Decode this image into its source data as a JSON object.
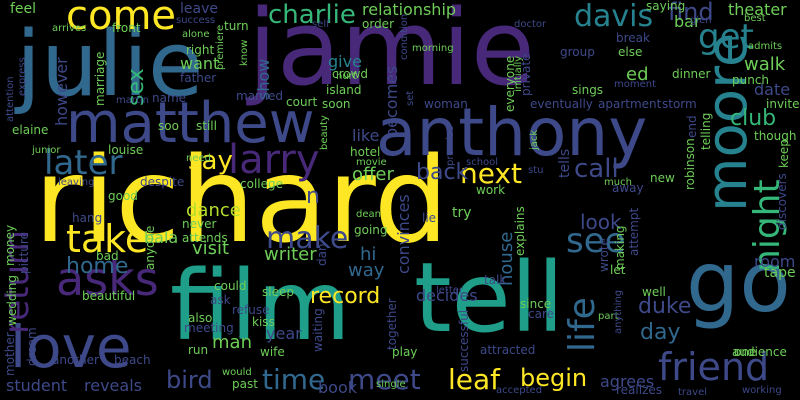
{
  "palette": {
    "yellow": "#fde725",
    "lime": "#b5de2b",
    "green": "#6ece58",
    "green2": "#35b779",
    "teal": "#1f9e89",
    "teal2": "#26828e",
    "blue": "#31688e",
    "indigo": "#3e4989",
    "purple": "#482878",
    "dark": "#440154"
  },
  "words": [
    {
      "text": "richard",
      "color": "#fde725"
    },
    {
      "text": "jamie",
      "color": "#482878"
    },
    {
      "text": "julie",
      "color": "#31688e"
    },
    {
      "text": "film",
      "color": "#1f9e89"
    },
    {
      "text": "tell",
      "color": "#1f9e89"
    },
    {
      "text": "anthony",
      "color": "#3e4989"
    },
    {
      "text": "go",
      "color": "#31688e"
    },
    {
      "text": "love",
      "color": "#3e4989"
    },
    {
      "text": "matthew",
      "color": "#3e4989"
    },
    {
      "text": "moore",
      "color": "#26828e"
    },
    {
      "text": "larry",
      "color": "#482878"
    },
    {
      "text": "asks",
      "color": "#482878"
    },
    {
      "text": "come",
      "color": "#fde725"
    },
    {
      "text": "friend",
      "color": "#3e4989"
    },
    {
      "text": "take",
      "color": "#fde725"
    },
    {
      "text": "night",
      "color": "#35b779"
    },
    {
      "text": "later",
      "color": "#31688e"
    },
    {
      "text": "return",
      "color": "#482878"
    },
    {
      "text": "charlie",
      "color": "#35b779"
    },
    {
      "text": "davis",
      "color": "#26828e"
    },
    {
      "text": "life",
      "color": "#31688e"
    },
    {
      "text": "get",
      "color": "#26828e"
    },
    {
      "text": "see",
      "color": "#31688e"
    },
    {
      "text": "record",
      "color": "#fde725"
    },
    {
      "text": "time",
      "color": "#31688e"
    },
    {
      "text": "make",
      "color": "#3e4989"
    },
    {
      "text": "call",
      "color": "#3e4989"
    },
    {
      "text": "next",
      "color": "#fde725"
    },
    {
      "text": "back",
      "color": "#3e4989"
    },
    {
      "text": "say",
      "color": "#fde725"
    },
    {
      "text": "meet",
      "color": "#3e4989"
    },
    {
      "text": "leaf",
      "color": "#fde725"
    },
    {
      "text": "begin",
      "color": "#fde725"
    },
    {
      "text": "home",
      "color": "#31688e"
    },
    {
      "text": "bird",
      "color": "#3e4989"
    },
    {
      "text": "find",
      "color": "#3e4989"
    },
    {
      "text": "sex",
      "color": "#35b779"
    },
    {
      "text": "duke",
      "color": "#3e4989"
    },
    {
      "text": "club",
      "color": "#35b779"
    },
    {
      "text": "day",
      "color": "#31688e"
    },
    {
      "text": "walk",
      "color": "#6ece58"
    },
    {
      "text": "house",
      "color": "#31688e"
    },
    {
      "text": "offer",
      "color": "#6ece58"
    },
    {
      "text": "dance",
      "color": "#b5de2b"
    },
    {
      "text": "man",
      "color": "#6ece58"
    },
    {
      "text": "visit",
      "color": "#6ece58"
    },
    {
      "text": "writer",
      "color": "#6ece58"
    },
    {
      "text": "look",
      "color": "#3e4989"
    },
    {
      "text": "way",
      "color": "#31688e"
    },
    {
      "text": "however",
      "color": "#3e4989"
    },
    {
      "text": "relationship",
      "color": "#6ece58"
    },
    {
      "text": "decides",
      "color": "#3e4989"
    },
    {
      "text": "convinces",
      "color": "#3e4989"
    },
    {
      "text": "reveals",
      "color": "#3e4989"
    },
    {
      "text": "student",
      "color": "#3e4989"
    },
    {
      "text": "agrees",
      "color": "#3e4989"
    },
    {
      "text": "bar",
      "color": "#6ece58"
    },
    {
      "text": "theater",
      "color": "#6ece58"
    },
    {
      "text": "date",
      "color": "#3e4989"
    },
    {
      "text": "room",
      "color": "#3e4989"
    },
    {
      "text": "want",
      "color": "#6ece58"
    },
    {
      "text": "show",
      "color": "#31688e"
    },
    {
      "text": "give",
      "color": "#26828e"
    },
    {
      "text": "becomes",
      "color": "#3e4989"
    },
    {
      "text": "ed",
      "color": "#6ece58"
    },
    {
      "text": "year",
      "color": "#3e4989"
    },
    {
      "text": "hi",
      "color": "#31688e"
    },
    {
      "text": "n",
      "color": "#3e4989"
    },
    {
      "text": "like",
      "color": "#3e4989"
    },
    {
      "text": "bala",
      "color": "#6ece58"
    },
    {
      "text": "tape",
      "color": "#6ece58"
    },
    {
      "text": "refuse",
      "color": "#3e4989"
    },
    {
      "text": "tells",
      "color": "#3e4989"
    },
    {
      "text": "feel",
      "color": "#6ece58"
    },
    {
      "text": "leave",
      "color": "#3e4989"
    },
    {
      "text": "saying",
      "color": "#6ece58"
    },
    {
      "text": "book",
      "color": "#3e4989"
    },
    {
      "text": "attracted",
      "color": "#3e4989"
    },
    {
      "text": "realizes",
      "color": "#3e4989"
    },
    {
      "text": "kiss",
      "color": "#6ece58"
    },
    {
      "text": "play",
      "color": "#6ece58"
    },
    {
      "text": "wife",
      "color": "#6ece58"
    },
    {
      "text": "invite",
      "color": "#6ece58"
    },
    {
      "text": "audience",
      "color": "#6ece58"
    },
    {
      "text": "group",
      "color": "#3e4989"
    },
    {
      "text": "dinner",
      "color": "#6ece58"
    },
    {
      "text": "woman",
      "color": "#3e4989"
    },
    {
      "text": "island",
      "color": "#6ece58"
    },
    {
      "text": "hotel",
      "color": "#6ece58"
    },
    {
      "text": "crowd",
      "color": "#6ece58"
    },
    {
      "text": "soon",
      "color": "#6ece58"
    },
    {
      "text": "beach",
      "color": "#3e4989"
    },
    {
      "text": "another",
      "color": "#3e4989"
    },
    {
      "text": "hang",
      "color": "#3e4989"
    },
    {
      "text": "despite",
      "color": "#3e4989"
    },
    {
      "text": "college",
      "color": "#6ece58"
    },
    {
      "text": "successful",
      "color": "#3e4989"
    },
    {
      "text": "everyone",
      "color": "#6ece58"
    },
    {
      "text": "eventually",
      "color": "#3e4989"
    },
    {
      "text": "private",
      "color": "#3e4989"
    },
    {
      "text": "apartment",
      "color": "#3e4989"
    },
    {
      "text": "sings",
      "color": "#6ece58"
    },
    {
      "text": "else",
      "color": "#6ece58"
    },
    {
      "text": "break",
      "color": "#3e4989"
    },
    {
      "text": "punch",
      "color": "#6ece58"
    },
    {
      "text": "storm",
      "color": "#3e4989"
    },
    {
      "text": "though",
      "color": "#6ece58"
    },
    {
      "text": "elaine",
      "color": "#6ece58"
    },
    {
      "text": "louise",
      "color": "#6ece58"
    },
    {
      "text": "junior",
      "color": "#6ece58"
    },
    {
      "text": "name",
      "color": "#3e4989"
    },
    {
      "text": "married",
      "color": "#3e4989"
    },
    {
      "text": "court",
      "color": "#6ece58"
    },
    {
      "text": "father",
      "color": "#3e4989"
    },
    {
      "text": "marriage",
      "color": "#6ece58"
    },
    {
      "text": "right",
      "color": "#6ece58"
    },
    {
      "text": "front",
      "color": "#6ece58"
    },
    {
      "text": "arrives",
      "color": "#6ece58"
    },
    {
      "text": "express",
      "color": "#3e4989"
    },
    {
      "text": "attention",
      "color": "#3e4989"
    },
    {
      "text": "success",
      "color": "#3e4989"
    },
    {
      "text": "alone",
      "color": "#6ece58"
    },
    {
      "text": "turn",
      "color": "#6ece58"
    },
    {
      "text": "order",
      "color": "#6ece58"
    },
    {
      "text": "doctor",
      "color": "#3e4989"
    },
    {
      "text": "morning",
      "color": "#6ece58"
    },
    {
      "text": "initially",
      "color": "#6ece58"
    },
    {
      "text": "hurt",
      "color": "#6ece58"
    },
    {
      "text": "premiere",
      "color": "#6ece58"
    },
    {
      "text": "know",
      "color": "#6ece58"
    },
    {
      "text": "self",
      "color": "#3e4989"
    },
    {
      "text": "condition",
      "color": "#3e4989"
    },
    {
      "text": "set",
      "color": "#3e4989"
    },
    {
      "text": "glen",
      "color": "#3e4989"
    },
    {
      "text": "best",
      "color": "#6ece58"
    },
    {
      "text": "admits",
      "color": "#6ece58"
    },
    {
      "text": "moment",
      "color": "#3e4989"
    },
    {
      "text": "martin",
      "color": "#3e4989"
    },
    {
      "text": "soo",
      "color": "#6ece58"
    },
    {
      "text": "still",
      "color": "#6ece58"
    },
    {
      "text": "need",
      "color": "#6ece58"
    },
    {
      "text": "beauty",
      "color": "#6ece58"
    },
    {
      "text": "movie",
      "color": "#6ece58"
    },
    {
      "text": "jack",
      "color": "#6ece58"
    },
    {
      "text": "school",
      "color": "#3e4989"
    },
    {
      "text": "promise",
      "color": "#3e4989"
    },
    {
      "text": "stu",
      "color": "#3e4989"
    },
    {
      "text": "keep",
      "color": "#6ece58"
    },
    {
      "text": "discovers",
      "color": "#3e4989"
    },
    {
      "text": "robinson",
      "color": "#6ece58"
    },
    {
      "text": "end",
      "color": "#3e4989"
    },
    {
      "text": "telling",
      "color": "#6ece58"
    },
    {
      "text": "new",
      "color": "#6ece58"
    },
    {
      "text": "away",
      "color": "#3e4989"
    },
    {
      "text": "much",
      "color": "#6ece58"
    },
    {
      "text": "work",
      "color": "#6ece58"
    },
    {
      "text": "leaving",
      "color": "#3e4989"
    },
    {
      "text": "good",
      "color": "#6ece58"
    },
    {
      "text": "never",
      "color": "#6ece58"
    },
    {
      "text": "attends",
      "color": "#6ece58"
    },
    {
      "text": "dean",
      "color": "#6ece58"
    },
    {
      "text": "going",
      "color": "#6ece58"
    },
    {
      "text": "lie",
      "color": "#3e4989"
    },
    {
      "text": "try",
      "color": "#6ece58"
    },
    {
      "text": "explains",
      "color": "#6ece58"
    },
    {
      "text": "making",
      "color": "#6ece58"
    },
    {
      "text": "attempt",
      "color": "#3e4989"
    },
    {
      "text": "picture",
      "color": "#3e4989"
    },
    {
      "text": "money",
      "color": "#6ece58"
    },
    {
      "text": "bad",
      "color": "#6ece58"
    },
    {
      "text": "anyone",
      "color": "#6ece58"
    },
    {
      "text": "dan",
      "color": "#3e4989"
    },
    {
      "text": "talk",
      "color": "#3e4989"
    },
    {
      "text": "let",
      "color": "#6ece58"
    },
    {
      "text": "wrote",
      "color": "#3e4989"
    },
    {
      "text": "beautiful",
      "color": "#6ece58"
    },
    {
      "text": "sleep",
      "color": "#6ece58"
    },
    {
      "text": "letter",
      "color": "#3e4989"
    },
    {
      "text": "well",
      "color": "#6ece58"
    },
    {
      "text": "wedding",
      "color": "#6ece58"
    },
    {
      "text": "could",
      "color": "#6ece58"
    },
    {
      "text": "ask",
      "color": "#3e4989"
    },
    {
      "text": "care",
      "color": "#3e4989"
    },
    {
      "text": "since",
      "color": "#6ece58"
    },
    {
      "text": "mother",
      "color": "#3e4989"
    },
    {
      "text": "dream",
      "color": "#3e4989"
    },
    {
      "text": "meeting",
      "color": "#3e4989"
    },
    {
      "text": "run",
      "color": "#6ece58"
    },
    {
      "text": "together",
      "color": "#3e4989"
    },
    {
      "text": "waiting",
      "color": "#3e4989"
    },
    {
      "text": "part",
      "color": "#6ece58"
    },
    {
      "text": "anything",
      "color": "#3e4989"
    },
    {
      "text": "one",
      "color": "#6ece58"
    },
    {
      "text": "would",
      "color": "#6ece58"
    },
    {
      "text": "past",
      "color": "#6ece58"
    },
    {
      "text": "single",
      "color": "#6ece58"
    },
    {
      "text": "accepted",
      "color": "#3e4989"
    },
    {
      "text": "travel",
      "color": "#3e4989"
    },
    {
      "text": "working",
      "color": "#3e4989"
    },
    {
      "text": "also",
      "color": "#6ece58"
    }
  ]
}
